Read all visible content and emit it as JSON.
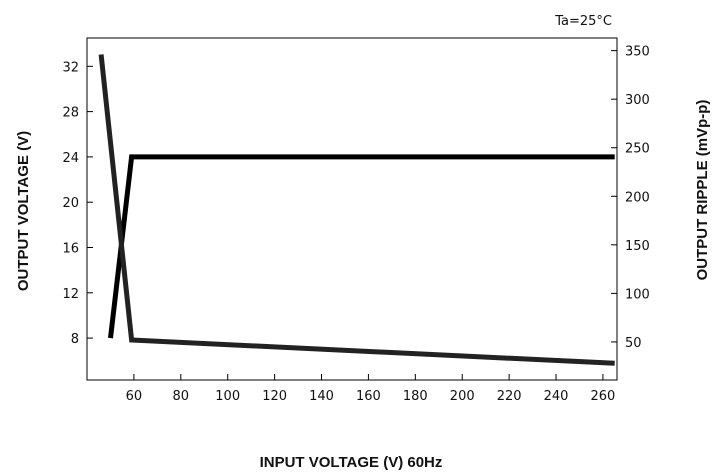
{
  "chart_data": {
    "type": "line",
    "condition": "Ta=25°C",
    "xlabel": "INPUT VOLTAGE (V) 60Hz",
    "ylabel_left": "OUTPUT VOLTAGE (V)",
    "ylabel_right": "OUTPUT RIPPLE (mVp-p)",
    "xlim": [
      40,
      266
    ],
    "x_ticks": [
      60,
      80,
      100,
      120,
      140,
      160,
      180,
      200,
      220,
      240,
      260
    ],
    "ylim_left": [
      4.3,
      34.5
    ],
    "y_ticks_left": [
      8,
      12,
      16,
      20,
      24,
      28,
      32
    ],
    "ylim_right": [
      10.8,
      363
    ],
    "y_ticks_right": [
      50,
      100,
      150,
      200,
      250,
      300,
      350
    ],
    "series": [
      {
        "axis": "left",
        "x": [
          50,
          59,
          265
        ],
        "y": [
          8,
          24,
          24
        ],
        "color": "#000000"
      },
      {
        "axis": "right",
        "x": [
          46,
          59,
          265
        ],
        "y": [
          346,
          52,
          28
        ],
        "color": "#222222"
      }
    ],
    "grid": false
  }
}
